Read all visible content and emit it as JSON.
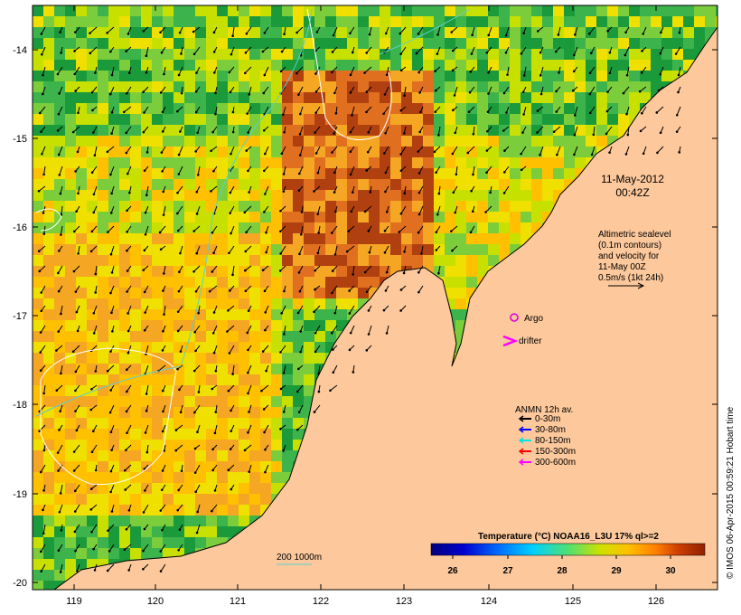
{
  "map": {
    "lon_ticks": [
      "119",
      "120",
      "121",
      "122",
      "123",
      "124",
      "125",
      "126"
    ],
    "lat_ticks": [
      "-14",
      "-15",
      "-16",
      "-17",
      "-18",
      "-19",
      "-20"
    ],
    "date_label": "11-May-2012",
    "time_label": "00:42Z",
    "altimetry_note": [
      "Altimetric sealevel",
      "(0.1m contours)",
      "and velocity for",
      "11-May 00Z",
      "0.5m/s (1kt 24h)"
    ],
    "argo_label": "Argo",
    "drifter_label": "drifter",
    "anmn_title": "ANMN 12h av.",
    "anmn_legend": [
      {
        "label": "0-30m",
        "color": "#000000"
      },
      {
        "label": "30-80m",
        "color": "#0000ff"
      },
      {
        "label": "80-150m",
        "color": "#00e5e5"
      },
      {
        "label": "150-300m",
        "color": "#ff0000"
      },
      {
        "label": "300-600m",
        "color": "#ff00ff"
      }
    ],
    "isobath_label": "200  1000m",
    "colorbar_title": "Temperature (°C) NOAA16_L3U 17% ql>=2",
    "colorbar_ticks": [
      "26",
      "27",
      "28",
      "29",
      "30"
    ],
    "credit": "© IMOS 06-Apr-2015 00:59:21 Hobart time",
    "colors": {
      "land": "#fcc89c",
      "argo": "#e000e0",
      "drifter": "#ff00ff",
      "isobath": "#5ccfcf"
    }
  }
}
